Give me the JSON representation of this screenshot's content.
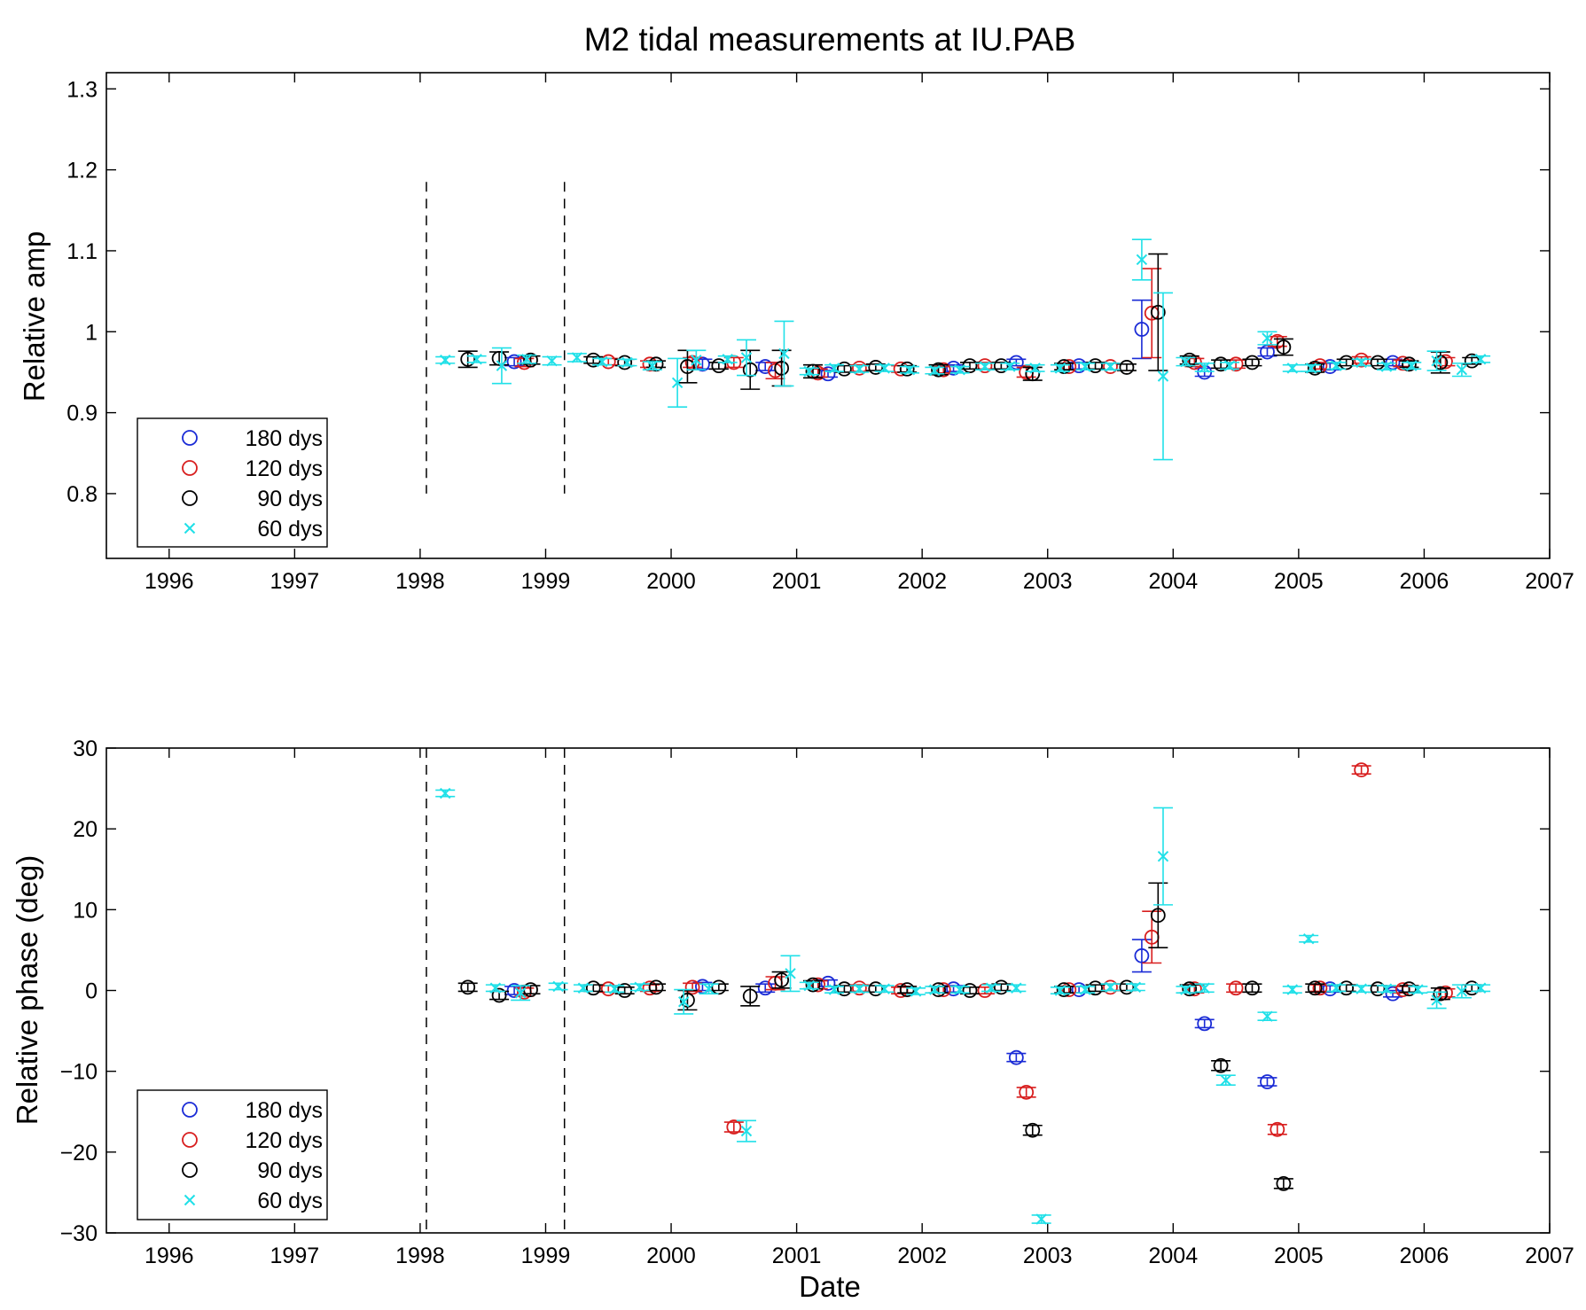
{
  "title": "M2 tidal measurements at IU.PAB",
  "chart_data": [
    {
      "type": "scatter",
      "title": "M2 tidal measurements at IU.PAB",
      "xlabel": "",
      "ylabel": "Relative amp",
      "xlim": [
        1995.5,
        2007
      ],
      "ylim": [
        0.72,
        1.32
      ],
      "xticks": [
        "1996",
        "1997",
        "1998",
        "1999",
        "2000",
        "2001",
        "2002",
        "2003",
        "2004",
        "2005",
        "2006",
        "2007"
      ],
      "yticks": [
        "0.8",
        "0.9",
        "1",
        "1.1",
        "1.2",
        "1.3"
      ],
      "vlines": [
        1998.05,
        1999.15
      ],
      "grid": false,
      "legend_position": "bottom-left",
      "series": [
        {
          "name": "180 dys",
          "marker": "circle",
          "color": "#1a2bd6",
          "x": [
            1998.75,
            2000.25,
            2000.75,
            2001.25,
            2002.25,
            2002.75,
            2003.25,
            2003.75,
            2004.25,
            2004.75,
            2005.25,
            2005.75
          ],
          "y": [
            0.963,
            0.96,
            0.957,
            0.948,
            0.955,
            0.962,
            0.958,
            1.003,
            0.95,
            0.975,
            0.957,
            0.962
          ],
          "err": [
            0.005,
            0.006,
            0.005,
            0.004,
            0.004,
            0.004,
            0.004,
            0.036,
            0.005,
            0.005,
            0.004,
            0.004
          ]
        },
        {
          "name": "120 dys",
          "marker": "circle",
          "color": "#d81e1e",
          "x": [
            1998.83,
            1999.5,
            1999.83,
            2000.17,
            2000.5,
            2000.83,
            2001.17,
            2001.5,
            2001.83,
            2002.17,
            2002.5,
            2002.83,
            2003.17,
            2003.5,
            2003.83,
            2004.17,
            2004.5,
            2004.83,
            2005.17,
            2005.5,
            2005.83,
            2006.17
          ],
          "y": [
            0.962,
            0.963,
            0.96,
            0.962,
            0.962,
            0.952,
            0.949,
            0.955,
            0.954,
            0.953,
            0.958,
            0.95,
            0.957,
            0.957,
            1.023,
            0.962,
            0.96,
            0.988,
            0.958,
            0.965,
            0.961,
            0.963
          ],
          "err": [
            0.005,
            0.004,
            0.004,
            0.006,
            0.006,
            0.01,
            0.005,
            0.004,
            0.004,
            0.004,
            0.004,
            0.006,
            0.004,
            0.004,
            0.055,
            0.005,
            0.005,
            0.006,
            0.004,
            0.004,
            0.004,
            0.005
          ]
        },
        {
          "name": "90 dys",
          "marker": "circle",
          "color": "#000000",
          "x": [
            1998.38,
            1998.63,
            1998.88,
            1999.38,
            1999.63,
            1999.88,
            2000.13,
            2000.38,
            2000.63,
            2000.88,
            2001.13,
            2001.38,
            2001.63,
            2001.88,
            2002.13,
            2002.38,
            2002.63,
            2002.88,
            2003.13,
            2003.38,
            2003.63,
            2003.88,
            2004.13,
            2004.38,
            2004.63,
            2004.88,
            2005.13,
            2005.38,
            2005.63,
            2005.88,
            2006.13,
            2006.38
          ],
          "y": [
            0.966,
            0.967,
            0.965,
            0.965,
            0.962,
            0.96,
            0.957,
            0.958,
            0.953,
            0.955,
            0.951,
            0.954,
            0.956,
            0.954,
            0.953,
            0.958,
            0.958,
            0.948,
            0.957,
            0.958,
            0.956,
            1.024,
            0.965,
            0.96,
            0.962,
            0.981,
            0.955,
            0.962,
            0.962,
            0.96,
            0.962,
            0.964
          ],
          "err": [
            0.01,
            0.008,
            0.005,
            0.004,
            0.004,
            0.004,
            0.02,
            0.004,
            0.024,
            0.022,
            0.008,
            0.004,
            0.004,
            0.004,
            0.006,
            0.004,
            0.004,
            0.008,
            0.004,
            0.004,
            0.004,
            0.072,
            0.005,
            0.005,
            0.004,
            0.01,
            0.005,
            0.004,
            0.004,
            0.004,
            0.013,
            0.004
          ]
        },
        {
          "name": "60 dys",
          "marker": "x",
          "color": "#20e0e8",
          "x": [
            1998.2,
            1998.45,
            1998.65,
            1998.85,
            1999.05,
            1999.25,
            1999.45,
            1999.65,
            1999.85,
            2000.05,
            2000.2,
            2000.45,
            2000.6,
            2000.9,
            2001.1,
            2001.3,
            2001.5,
            2001.7,
            2001.9,
            2002.1,
            2002.3,
            2002.5,
            2002.7,
            2002.9,
            2003.1,
            2003.3,
            2003.5,
            2003.75,
            2003.92,
            2004.1,
            2004.25,
            2004.45,
            2004.75,
            2004.95,
            2005.1,
            2005.3,
            2005.5,
            2005.7,
            2005.9,
            2006.1,
            2006.3,
            2006.45
          ],
          "y": [
            0.965,
            0.966,
            0.958,
            0.966,
            0.964,
            0.968,
            0.963,
            0.962,
            0.958,
            0.937,
            0.965,
            0.966,
            0.968,
            0.973,
            0.951,
            0.955,
            0.954,
            0.955,
            0.953,
            0.952,
            0.953,
            0.957,
            0.957,
            0.955,
            0.955,
            0.957,
            0.957,
            1.089,
            0.945,
            0.963,
            0.956,
            0.958,
            0.992,
            0.955,
            0.955,
            0.958,
            0.962,
            0.957,
            0.958,
            0.964,
            0.953,
            0.966
          ],
          "err": [
            0.004,
            0.004,
            0.022,
            0.005,
            0.005,
            0.005,
            0.004,
            0.004,
            0.005,
            0.03,
            0.012,
            0.004,
            0.022,
            0.04,
            0.004,
            0.004,
            0.004,
            0.004,
            0.004,
            0.004,
            0.004,
            0.004,
            0.004,
            0.004,
            0.004,
            0.004,
            0.004,
            0.025,
            0.103,
            0.005,
            0.005,
            0.004,
            0.008,
            0.004,
            0.004,
            0.004,
            0.004,
            0.004,
            0.004,
            0.012,
            0.008,
            0.004
          ]
        }
      ]
    },
    {
      "type": "scatter",
      "title": "",
      "xlabel": "Date",
      "ylabel": "Relative phase (deg)",
      "xlim": [
        1995.5,
        2007
      ],
      "ylim": [
        -30,
        30
      ],
      "xticks": [
        "1996",
        "1997",
        "1998",
        "1999",
        "2000",
        "2001",
        "2002",
        "2003",
        "2004",
        "2005",
        "2006",
        "2007"
      ],
      "yticks": [
        "−30",
        "−20",
        "−10",
        "0",
        "10",
        "20",
        "30"
      ],
      "vlines": [
        1998.05,
        1999.15
      ],
      "grid": false,
      "legend_position": "bottom-left",
      "series": [
        {
          "name": "180 dys",
          "marker": "circle",
          "color": "#1a2bd6",
          "x": [
            1998.75,
            2000.25,
            2000.75,
            2001.25,
            2002.25,
            2002.75,
            2003.25,
            2003.75,
            2004.25,
            2004.75,
            2005.25,
            2005.75
          ],
          "y": [
            0.0,
            0.5,
            0.3,
            0.9,
            0.2,
            -8.3,
            0.1,
            4.3,
            -4.1,
            -11.3,
            0.2,
            -0.4
          ],
          "err": [
            0.5,
            0.5,
            0.5,
            0.4,
            0.4,
            0.5,
            0.4,
            2.0,
            0.5,
            0.5,
            0.4,
            0.4
          ]
        },
        {
          "name": "120 dys",
          "marker": "circle",
          "color": "#d81e1e",
          "x": [
            1998.83,
            1999.5,
            1999.83,
            2000.17,
            2000.5,
            2000.83,
            2001.17,
            2001.5,
            2001.83,
            2002.17,
            2002.5,
            2002.83,
            2003.17,
            2003.5,
            2003.83,
            2004.17,
            2004.5,
            2004.83,
            2005.17,
            2005.5,
            2005.83,
            2006.17
          ],
          "y": [
            -0.2,
            0.2,
            0.3,
            0.4,
            -16.9,
            0.9,
            0.7,
            0.3,
            0.0,
            0.1,
            0.0,
            -12.6,
            0.1,
            0.4,
            6.6,
            0.2,
            0.3,
            -17.2,
            0.3,
            27.3,
            0.1,
            -0.3
          ],
          "err": [
            0.5,
            0.4,
            0.4,
            0.5,
            0.6,
            0.8,
            0.5,
            0.4,
            0.4,
            0.4,
            0.4,
            0.6,
            0.4,
            0.4,
            3.2,
            0.5,
            0.5,
            0.6,
            0.4,
            0.5,
            0.4,
            0.5
          ]
        },
        {
          "name": "90 dys",
          "marker": "circle",
          "color": "#000000",
          "x": [
            1998.38,
            1998.63,
            1998.88,
            1999.38,
            1999.63,
            1999.88,
            2000.13,
            2000.38,
            2000.63,
            2000.88,
            2001.13,
            2001.38,
            2001.63,
            2001.88,
            2002.13,
            2002.38,
            2002.63,
            2002.88,
            2003.13,
            2003.38,
            2003.63,
            2003.88,
            2004.13,
            2004.38,
            2004.63,
            2004.88,
            2005.13,
            2005.38,
            2005.63,
            2005.88,
            2006.13,
            2006.38
          ],
          "y": [
            0.4,
            -0.6,
            0.1,
            0.3,
            0.0,
            0.4,
            -1.2,
            0.4,
            -0.7,
            1.3,
            0.7,
            0.2,
            0.2,
            0.1,
            0.1,
            0.0,
            0.4,
            -17.3,
            0.1,
            0.3,
            0.4,
            9.3,
            0.2,
            -9.3,
            0.3,
            -23.9,
            0.3,
            0.3,
            0.2,
            0.2,
            -0.4,
            0.3
          ],
          "err": [
            0.5,
            0.5,
            0.5,
            0.4,
            0.4,
            0.4,
            1.2,
            0.4,
            1.2,
            1.0,
            0.5,
            0.4,
            0.4,
            0.4,
            0.4,
            0.4,
            0.4,
            0.6,
            0.4,
            0.4,
            0.4,
            4.0,
            0.5,
            0.6,
            0.5,
            0.6,
            0.5,
            0.4,
            0.4,
            0.4,
            0.7,
            0.4
          ]
        },
        {
          "name": "60 dys",
          "marker": "x",
          "color": "#20e0e8",
          "x": [
            1998.2,
            1998.6,
            1998.8,
            1999.1,
            1999.3,
            1999.55,
            1999.75,
            2000.1,
            2000.3,
            2000.6,
            2000.95,
            2001.1,
            2001.3,
            2001.5,
            2001.7,
            2001.95,
            2002.1,
            2002.3,
            2002.55,
            2002.75,
            2002.95,
            2003.1,
            2003.3,
            2003.5,
            2003.7,
            2003.92,
            2004.1,
            2004.25,
            2004.42,
            2004.75,
            2004.95,
            2005.08,
            2005.3,
            2005.5,
            2005.7,
            2005.95,
            2006.1,
            2006.3,
            2006.45
          ],
          "y": [
            24.4,
            0.3,
            -0.3,
            0.5,
            0.3,
            0.2,
            0.4,
            -1.4,
            0.2,
            -17.4,
            2.1,
            0.6,
            0.1,
            0.2,
            0.2,
            -0.1,
            0.1,
            0.1,
            0.3,
            0.3,
            -28.3,
            0.0,
            0.1,
            0.4,
            0.4,
            16.6,
            0.1,
            0.3,
            -11.1,
            -3.2,
            0.1,
            6.4,
            0.3,
            0.2,
            0.2,
            0.1,
            -1.2,
            -0.1,
            0.3
          ],
          "err": [
            0.4,
            0.4,
            0.9,
            0.4,
            0.4,
            0.4,
            0.4,
            1.5,
            0.6,
            1.3,
            2.2,
            0.4,
            0.4,
            0.4,
            0.4,
            0.4,
            0.4,
            0.4,
            0.4,
            0.4,
            0.5,
            0.4,
            0.4,
            0.4,
            0.4,
            6.0,
            0.4,
            0.5,
            0.6,
            0.5,
            0.4,
            0.4,
            0.4,
            0.4,
            0.4,
            0.4,
            1.0,
            0.8,
            0.4
          ]
        }
      ]
    }
  ]
}
